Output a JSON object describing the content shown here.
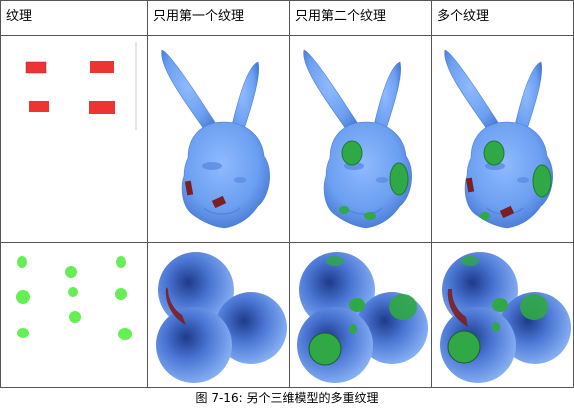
{
  "table": {
    "headers": [
      "纹理",
      "只用第一个纹理",
      "只用第二个纹理",
      "多个纹理"
    ]
  },
  "caption": "图 7-16: 另个三维模型的多重纹理",
  "colors": {
    "grid_line": "#555555",
    "model_blue": "#6b9ff0",
    "model_shadow": "#2c4fa8",
    "texture_red": "#ee3333",
    "patch_dark_red": "#7a1f24",
    "texture_green": "#66ee55",
    "patch_green": "#2fa845"
  },
  "rows": [
    {
      "model": "bunny-icon",
      "texture": "red-rectangles"
    },
    {
      "model": "three-spheres-icon",
      "texture": "green-ellipses"
    }
  ]
}
